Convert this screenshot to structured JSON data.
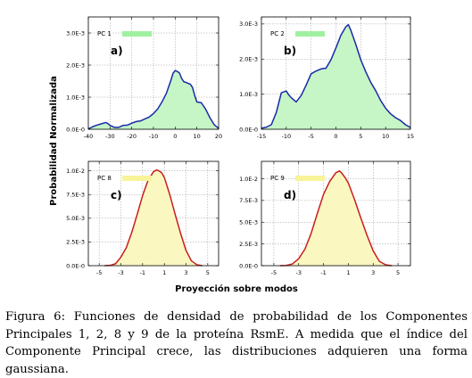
{
  "chart_data": [
    {
      "type": "area",
      "legend": "PC 1",
      "panel_label": "a)",
      "xlim": [
        -40,
        20
      ],
      "ylim": [
        0,
        0.0035
      ],
      "x_ticks": [
        "-40",
        "-30",
        "-20",
        "-10",
        "0",
        "10",
        "20"
      ],
      "y_ticks": [
        "0.0E-0",
        "1.0E-3",
        "2.0E-3",
        "3.0E-3"
      ],
      "fill_color": "#c6f5c6",
      "line_color": "#1a2aa8",
      "legend_swatch": "#9ff09f",
      "x": [
        -40,
        -38,
        -36,
        -34,
        -32,
        -31,
        -30,
        -28,
        -26,
        -24,
        -22,
        -20,
        -18,
        -16,
        -14,
        -12,
        -10,
        -8,
        -6,
        -4,
        -2,
        -1,
        0,
        1,
        2,
        3,
        4,
        5,
        6,
        7,
        8,
        9,
        10,
        12,
        14,
        16,
        18,
        20
      ],
      "y": [
        1e-05,
        8e-05,
        0.00013,
        0.00017,
        0.00021,
        0.00018,
        0.00012,
        6e-05,
        6e-05,
        0.00012,
        0.00013,
        0.00019,
        0.00024,
        0.00026,
        0.00032,
        0.00038,
        0.00049,
        0.00064,
        0.00086,
        0.00113,
        0.00152,
        0.00174,
        0.00183,
        0.0018,
        0.00175,
        0.00158,
        0.00148,
        0.00146,
        0.00143,
        0.0014,
        0.0013,
        0.00105,
        0.00085,
        0.00083,
        0.00063,
        0.00036,
        0.00014,
        3e-05
      ]
    },
    {
      "type": "area",
      "legend": "PC 2",
      "panel_label": "b)",
      "xlim": [
        -15,
        15
      ],
      "ylim": [
        0,
        0.0032
      ],
      "x_ticks": [
        "-15",
        "-10",
        "-5",
        "0",
        "5",
        "10",
        "15"
      ],
      "y_ticks": [
        "0.0E-0",
        "1.0E-3",
        "2.0E-3",
        "3.0E-3"
      ],
      "fill_color": "#c6f5c6",
      "line_color": "#1a2aa8",
      "legend_swatch": "#9ff09f",
      "x": [
        -15,
        -14,
        -13,
        -12,
        -11,
        -10,
        -9.5,
        -9,
        -8,
        -7,
        -6,
        -5,
        -4,
        -3,
        -2,
        -1,
        0,
        1,
        2,
        2.5,
        3,
        4,
        5,
        6,
        7,
        8,
        9,
        10,
        11,
        12,
        13,
        14,
        15
      ],
      "y": [
        3e-05,
        6e-05,
        0.00013,
        0.00048,
        0.00104,
        0.00109,
        0.00098,
        0.0009,
        0.00078,
        0.00096,
        0.00126,
        0.00158,
        0.00166,
        0.00172,
        0.00174,
        0.00198,
        0.00232,
        0.00268,
        0.00292,
        0.00298,
        0.00282,
        0.00242,
        0.00198,
        0.00164,
        0.00134,
        0.0011,
        0.00082,
        0.0006,
        0.00044,
        0.00033,
        0.00025,
        0.00013,
        5e-05
      ]
    },
    {
      "type": "area",
      "legend": "PC 8",
      "panel_label": "c)",
      "xlim": [
        -6,
        6
      ],
      "ylim": [
        0,
        0.011
      ],
      "x_ticks": [
        "-5",
        "-3",
        "-1",
        "1",
        "3",
        "5"
      ],
      "y_ticks": [
        "0.0E-0",
        "2.5E-3",
        "5.0E-3",
        "7.5E-3",
        "1.0E-2"
      ],
      "fill_color": "#fbf7c0",
      "line_color": "#c81e1e",
      "legend_swatch": "#f9f39a",
      "x": [
        -4.5,
        -4,
        -3.5,
        -3,
        -2.5,
        -2,
        -1.5,
        -1,
        -0.5,
        0,
        0.3,
        0.5,
        0.75,
        1,
        1.5,
        2,
        2.5,
        3,
        3.5,
        4,
        4.5
      ],
      "y": [
        0.0,
        3e-05,
        0.0002,
        0.0009,
        0.0019,
        0.0035,
        0.0054,
        0.0074,
        0.009,
        0.0099,
        0.0101,
        0.01,
        0.0098,
        0.0093,
        0.0075,
        0.0054,
        0.0034,
        0.0016,
        0.0005,
        0.0001,
        0.0
      ]
    },
    {
      "type": "area",
      "legend": "PC 9",
      "panel_label": "d)",
      "xlim": [
        -6,
        6
      ],
      "ylim": [
        0,
        0.012
      ],
      "x_ticks": [
        "-5",
        "-3",
        "-1",
        "1",
        "3",
        "5"
      ],
      "y_ticks": [
        "0.0E-0",
        "2.5E-3",
        "5.0E-3",
        "7.5E-3",
        "1.0E-2"
      ],
      "fill_color": "#fbf7c0",
      "line_color": "#c81e1e",
      "legend_swatch": "#f9f39a",
      "x": [
        -4.5,
        -4,
        -3.5,
        -3,
        -2.5,
        -2,
        -1.5,
        -1,
        -0.5,
        0,
        0.3,
        0.5,
        0.75,
        1,
        1.5,
        2,
        2.5,
        3,
        3.5,
        4,
        4.5
      ],
      "y": [
        0.0,
        3e-05,
        0.0002,
        0.0008,
        0.0019,
        0.0037,
        0.006,
        0.0082,
        0.0097,
        0.0107,
        0.0109,
        0.0106,
        0.0101,
        0.0095,
        0.0076,
        0.0055,
        0.0035,
        0.0017,
        0.0005,
        0.0001,
        0.0
      ]
    }
  ],
  "axis_labels": {
    "ylabel": "Probabilidad Normalizada",
    "xlabel": "Proyección sobre modos"
  },
  "caption": "Figura 6: Funciones de densidad de probabilidad de los Componentes Principales 1, 2, 8 y 9 de la proteína RsmE. A medida que el índice del Componente Principal crece, las distribuciones adquieren una forma gaussiana."
}
